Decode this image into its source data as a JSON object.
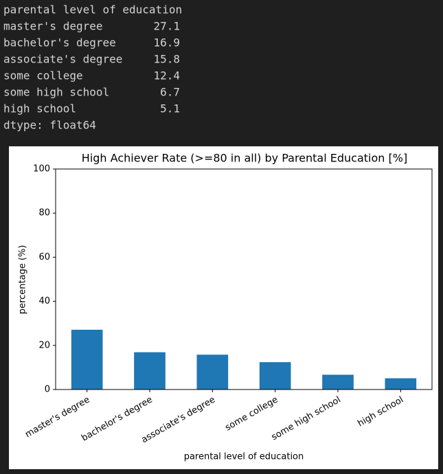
{
  "console": {
    "header": "parental level of education",
    "rows": [
      {
        "name": "master's degree",
        "value": 27.1
      },
      {
        "name": "bachelor's degree",
        "value": 16.9
      },
      {
        "name": "associate's degree",
        "value": 15.8
      },
      {
        "name": "some college",
        "value": 12.4
      },
      {
        "name": "some high school",
        "value": 6.7
      },
      {
        "name": "high school",
        "value": 5.1
      }
    ],
    "footer": "dtype: float64"
  },
  "chart_data": {
    "type": "bar",
    "title": "High Achiever Rate (>=80 in all) by Parental Education [%]",
    "x_label": "parental level of education",
    "y_label": "percentage (%)",
    "categories": [
      "master's degree",
      "bachelor's degree",
      "associate's degree",
      "some college",
      "some high school",
      "high school"
    ],
    "values": [
      27.1,
      16.9,
      15.8,
      12.4,
      6.7,
      5.1
    ],
    "color": "#1f77b4",
    "ylim": [
      0,
      100
    ],
    "yticks": [
      0,
      20,
      40,
      60,
      80,
      100
    ],
    "grid": false
  }
}
